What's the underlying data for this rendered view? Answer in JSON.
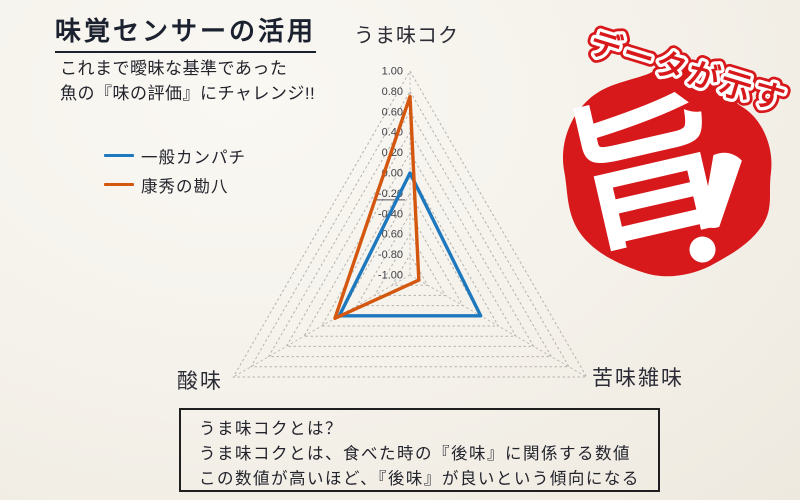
{
  "page": {
    "background_color": "#f5f2ec"
  },
  "header": {
    "title": "味覚センサーの活用",
    "subtitle_line1": "これまで曖昧な基準であった",
    "subtitle_line2": "魚の『味の評価』にチャレンジ!!"
  },
  "legend": {
    "items": [
      {
        "label": "一般カンパチ",
        "color": "#1e78be"
      },
      {
        "label": "康秀の勘八",
        "color": "#d4570f"
      }
    ]
  },
  "chart_data": {
    "type": "radar",
    "title": "",
    "categories": [
      "うま味コク",
      "苦味雑味",
      "酸味"
    ],
    "series": [
      {
        "name": "一般カンパチ",
        "color": "#1e78be",
        "values": [
          0.0,
          -0.2,
          -0.2
        ]
      },
      {
        "name": "康秀の勘八",
        "color": "#d4570f",
        "values": [
          0.75,
          -0.9,
          -0.15
        ]
      }
    ],
    "scale": {
      "min": -1.0,
      "max": 1.0,
      "step": 0.2,
      "tick_labels": [
        "1.00",
        "0.80",
        "0.60",
        "0.40",
        "0.20",
        "0.00",
        "-0.20",
        "-0.40",
        "-0.60",
        "-0.80",
        "-1.00"
      ]
    },
    "grid": "dashed concentric triangles",
    "grid_color": "#b5b3ae",
    "legend_position": "left"
  },
  "sticker": {
    "tagline": "データが示す",
    "big_char": "旨",
    "exclamation": "!",
    "color": "#d8191c"
  },
  "note_box": {
    "line1": "うま味コクとは？",
    "line2": "うま味コクとは、食べた時の『後味』に関係する数値",
    "line3": "この数値が高いほど、『後味』が良いという傾向になる"
  }
}
